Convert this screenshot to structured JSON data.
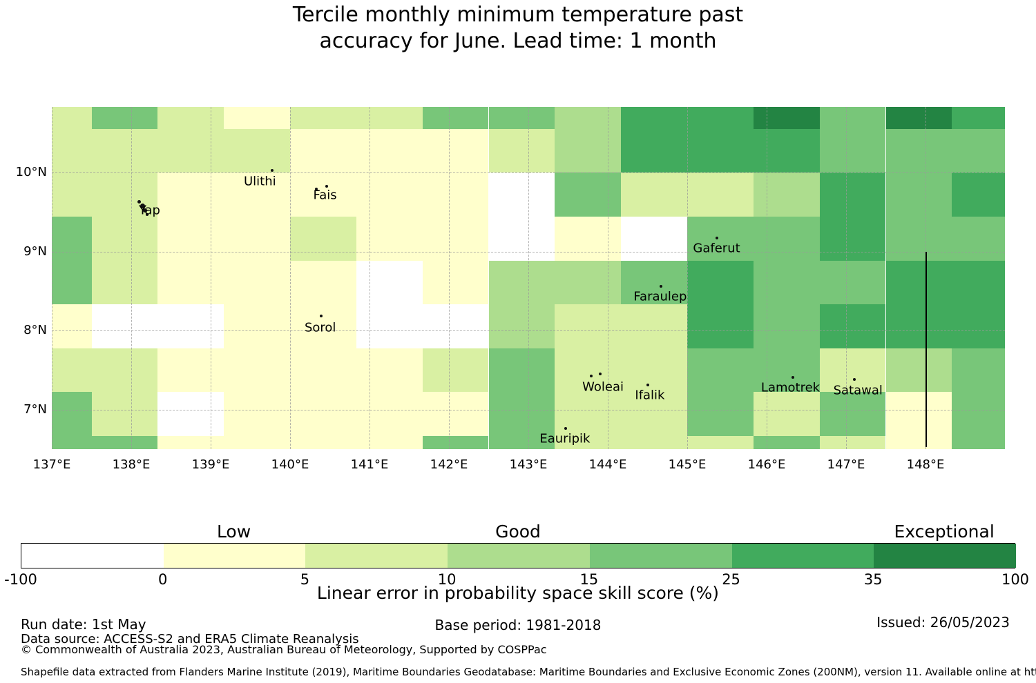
{
  "title": {
    "line1": "Tercile monthly minimum temperature past",
    "line2": "accuracy for June. Lead time: 1 month"
  },
  "chart_data": {
    "type": "heatmap",
    "title": "Tercile monthly minimum temperature past accuracy for June. Lead time: 1 month",
    "variable": "Linear error in probability space skill score (%)",
    "lon_range": [
      137.0,
      149.0
    ],
    "lat_range": [
      6.5,
      10.8333
    ],
    "x_ticks": [
      {
        "label": "137°E",
        "lon": 137
      },
      {
        "label": "138°E",
        "lon": 138
      },
      {
        "label": "139°E",
        "lon": 139
      },
      {
        "label": "140°E",
        "lon": 140
      },
      {
        "label": "141°E",
        "lon": 141
      },
      {
        "label": "142°E",
        "lon": 142
      },
      {
        "label": "143°E",
        "lon": 143
      },
      {
        "label": "144°E",
        "lon": 144
      },
      {
        "label": "145°E",
        "lon": 145
      },
      {
        "label": "146°E",
        "lon": 146
      },
      {
        "label": "147°E",
        "lon": 147
      },
      {
        "label": "148°E",
        "lon": 148
      }
    ],
    "y_ticks": [
      {
        "label": "10°N",
        "lat": 10
      },
      {
        "label": "9°N",
        "lat": 9
      },
      {
        "label": "8°N",
        "lat": 8
      },
      {
        "label": "7°N",
        "lat": 7
      }
    ],
    "lon_edges": [
      137.0,
      137.5,
      138.333,
      139.167,
      140.0,
      140.833,
      141.667,
      142.5,
      143.333,
      144.167,
      145.0,
      145.833,
      146.667,
      147.5,
      148.333,
      149.0
    ],
    "lat_edges": [
      10.8333,
      10.5556,
      10.0,
      9.4444,
      8.8889,
      8.3333,
      7.7778,
      7.2222,
      6.6667,
      6.5
    ],
    "palette": {
      "W": {
        "color": "#ffffff",
        "skill_range": "-100 to 0"
      },
      "Y": {
        "color": "#ffffcc",
        "skill_range": "0 to 5"
      },
      "YG": {
        "color": "#d9f0a3",
        "skill_range": "5 to 10"
      },
      "LG": {
        "color": "#addd8e",
        "skill_range": "10 to 15"
      },
      "MG": {
        "color": "#78c679",
        "skill_range": "15 to 25"
      },
      "G": {
        "color": "#41ab5d",
        "skill_range": "25 to 35"
      },
      "DG": {
        "color": "#238443",
        "skill_range": "35 to 100"
      }
    },
    "grid": [
      [
        "YG",
        "MG",
        "YG",
        "Y",
        "YG",
        "YG",
        "MG",
        "MG",
        "LG",
        "G",
        "G",
        "DG",
        "MG",
        "DG",
        "G"
      ],
      [
        "YG",
        "YG",
        "YG",
        "YG",
        "Y",
        "Y",
        "Y",
        "YG",
        "LG",
        "G",
        "G",
        "G",
        "MG",
        "MG",
        "MG"
      ],
      [
        "YG",
        "YG",
        "Y",
        "Y",
        "Y",
        "Y",
        "Y",
        "W",
        "MG",
        "YG",
        "YG",
        "LG",
        "G",
        "MG",
        "G"
      ],
      [
        "MG",
        "YG",
        "Y",
        "Y",
        "YG",
        "Y",
        "Y",
        "W",
        "Y",
        "W",
        "MG",
        "MG",
        "G",
        "MG",
        "MG"
      ],
      [
        "MG",
        "YG",
        "Y",
        "Y",
        "Y",
        "W",
        "Y",
        "LG",
        "LG",
        "MG",
        "G",
        "MG",
        "MG",
        "G",
        "G"
      ],
      [
        "Y",
        "W",
        "W",
        "Y",
        "Y",
        "W",
        "W",
        "LG",
        "YG",
        "YG",
        "G",
        "MG",
        "G",
        "G",
        "G"
      ],
      [
        "YG",
        "YG",
        "Y",
        "Y",
        "Y",
        "Y",
        "YG",
        "MG",
        "YG",
        "YG",
        "MG",
        "MG",
        "YG",
        "LG",
        "MG"
      ],
      [
        "MG",
        "YG",
        "W",
        "Y",
        "Y",
        "Y",
        "Y",
        "MG",
        "YG",
        "YG",
        "MG",
        "YG",
        "MG",
        "Y",
        "MG"
      ],
      [
        "MG",
        "MG",
        "Y",
        "Y",
        "Y",
        "Y",
        "MG",
        "MG",
        "YG",
        "YG",
        "YG",
        "MG",
        "YG",
        "Y",
        "MG"
      ]
    ],
    "islands": [
      {
        "name": "Yap",
        "lon": 138.23,
        "lat": 9.51,
        "markers": [
          [
            138.1,
            9.63,
            2.5
          ],
          [
            138.14,
            9.58,
            3.5
          ],
          [
            138.17,
            9.52,
            3
          ],
          [
            138.2,
            9.47,
            2
          ]
        ]
      },
      {
        "name": "Ulithi",
        "lon": 139.62,
        "lat": 9.88,
        "markers": [
          [
            139.77,
            10.03,
            2
          ]
        ]
      },
      {
        "name": "Fais",
        "lon": 140.44,
        "lat": 9.71,
        "markers": [
          [
            140.33,
            9.79,
            2
          ],
          [
            140.46,
            9.83,
            2
          ]
        ]
      },
      {
        "name": "Sorol",
        "lon": 140.38,
        "lat": 8.03,
        "markers": [
          [
            140.39,
            8.19,
            2
          ]
        ]
      },
      {
        "name": "Gaferut",
        "lon": 145.37,
        "lat": 9.03,
        "markers": [
          [
            145.37,
            9.17,
            2
          ]
        ]
      },
      {
        "name": "Faraulep",
        "lon": 144.66,
        "lat": 8.42,
        "markers": [
          [
            144.67,
            8.56,
            2
          ]
        ]
      },
      {
        "name": "Woleai",
        "lon": 143.94,
        "lat": 7.28,
        "markers": [
          [
            143.79,
            7.43,
            2
          ],
          [
            143.9,
            7.45,
            2
          ]
        ]
      },
      {
        "name": "Ifalik",
        "lon": 144.53,
        "lat": 7.17,
        "markers": [
          [
            144.5,
            7.31,
            2
          ]
        ]
      },
      {
        "name": "Lamotrek",
        "lon": 146.3,
        "lat": 7.27,
        "markers": [
          [
            146.33,
            7.41,
            2
          ]
        ]
      },
      {
        "name": "Satawal",
        "lon": 147.15,
        "lat": 7.23,
        "markers": [
          [
            147.1,
            7.38,
            2
          ]
        ]
      },
      {
        "name": "Eauripik",
        "lon": 143.46,
        "lat": 6.62,
        "markers": [
          [
            143.47,
            6.76,
            2
          ]
        ]
      }
    ],
    "eez_boundary_line": {
      "lon": 148.0,
      "lat_from": 9.0,
      "lat_to": 6.53
    },
    "colorbar": {
      "tick_labels": [
        "-100",
        "0",
        "5",
        "10",
        "15",
        "25",
        "35",
        "100"
      ],
      "segment_colors": [
        "#ffffff",
        "#ffffcc",
        "#d9f0a3",
        "#addd8e",
        "#78c679",
        "#41ab5d",
        "#238443"
      ],
      "categories": [
        {
          "label": "Low",
          "segment": 1
        },
        {
          "label": "Good",
          "segment": 3
        },
        {
          "label": "Exceptional",
          "segment": 6
        }
      ],
      "axis_label": "Linear error in probability space skill score (%)"
    }
  },
  "footer": {
    "run_date": "Run date: 1st May",
    "base_period": "Base period: 1981-2018",
    "issued": "Issued: 26/05/2023",
    "data_source": "Data source: ACCESS-S2 and ERA5 Climate Reanalysis",
    "copyright": "© Commonwealth of Australia 2023, Australian Bureau of Meteorology, Supported by COSPPac",
    "shapefile_note": "Shapefile data extracted from Flanders Marine Institute (2019), Maritime Boundaries Geodatabase: Maritime Boundaries and Exclusive Economic Zones (200NM), version 11. Available online at http://www.marineregions.org/."
  }
}
